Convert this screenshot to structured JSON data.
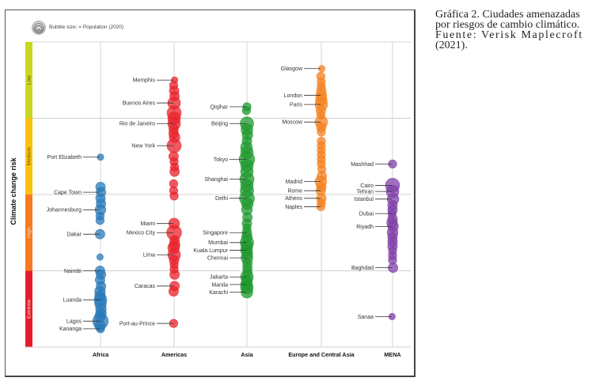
{
  "caption": {
    "line1": "Gráfica 2. Ciudades amenazadas",
    "line2": "por riesgos de cambio climático.",
    "line3": "Fuente: Verisk Maplecroft",
    "line4": "(2021)."
  },
  "chart_data": {
    "type": "scatter",
    "subtype": "beeswarm-bubble",
    "title": "",
    "legend": {
      "text": "Bubble size: = Population (2020)",
      "placement": "top-left",
      "icon": "bubble-size-icon"
    },
    "ylabel": "Climate change risk",
    "xlabel": "",
    "categories": [
      "Africa",
      "Americas",
      "Asia",
      "Europe and Central Asia",
      "MENA"
    ],
    "risk_bands": [
      {
        "label": "Low",
        "color": "#c9d81f",
        "range": [
          0,
          1
        ]
      },
      {
        "label": "Medium",
        "color": "#fbc20a",
        "range": [
          1,
          2
        ]
      },
      {
        "label": "High",
        "color": "#f57b20",
        "range": [
          2,
          3
        ]
      },
      {
        "label": "Extreme",
        "color": "#e8192c",
        "range": [
          3,
          4
        ]
      }
    ],
    "y_axis_note": "Risk index from 0 (top, lowest risk) to 4 (bottom, extreme risk)",
    "ylim": [
      0,
      4
    ],
    "grid": true,
    "series": [
      {
        "name": "Africa",
        "color": "#2a7ab8",
        "labeled": [
          {
            "city": "Port Elizabeth",
            "y": 1.51,
            "size": 1
          },
          {
            "city": "Cape Town",
            "y": 1.97,
            "size": 3
          },
          {
            "city": "Johannesburg",
            "y": 2.2,
            "size": 4
          },
          {
            "city": "Dakar",
            "y": 2.52,
            "size": 3
          },
          {
            "city": "Nairobi",
            "y": 3.0,
            "size": 3
          },
          {
            "city": "Luanda",
            "y": 3.38,
            "size": 6
          },
          {
            "city": "Lagos",
            "y": 3.66,
            "size": 10
          },
          {
            "city": "Kananga",
            "y": 3.76,
            "size": 2
          }
        ],
        "others": [
          [
            1.9,
            3
          ],
          [
            2.05,
            3
          ],
          [
            2.12,
            3
          ],
          [
            2.28,
            2
          ],
          [
            2.34,
            2
          ],
          [
            2.82,
            1
          ],
          [
            3.05,
            3
          ],
          [
            3.12,
            3
          ],
          [
            3.2,
            3
          ],
          [
            3.27,
            4
          ],
          [
            3.33,
            4
          ],
          [
            3.43,
            5
          ],
          [
            3.5,
            4
          ],
          [
            3.56,
            4
          ],
          [
            3.6,
            4
          ],
          [
            3.72,
            4
          ]
        ]
      },
      {
        "name": "Americas",
        "color": "#e8232c",
        "labeled": [
          {
            "city": "Memphis",
            "y": 0.5,
            "size": 1
          },
          {
            "city": "Buenos Aires",
            "y": 0.8,
            "size": 6
          },
          {
            "city": "Rio de Janeiro",
            "y": 1.07,
            "size": 6
          },
          {
            "city": "New York",
            "y": 1.36,
            "size": 8
          },
          {
            "city": "Miami",
            "y": 2.38,
            "size": 4
          },
          {
            "city": "Mexico City",
            "y": 2.5,
            "size": 9
          },
          {
            "city": "Lima",
            "y": 2.79,
            "size": 6
          },
          {
            "city": "Caracas",
            "y": 3.2,
            "size": 3
          },
          {
            "city": "Port-au-Prince",
            "y": 3.69,
            "size": 2
          }
        ],
        "others": [
          [
            0.57,
            2
          ],
          [
            0.64,
            3
          ],
          [
            0.71,
            3
          ],
          [
            0.93,
            8
          ],
          [
            1.0,
            6
          ],
          [
            1.14,
            3
          ],
          [
            1.2,
            3
          ],
          [
            1.25,
            4
          ],
          [
            1.5,
            3
          ],
          [
            1.57,
            2
          ],
          [
            1.64,
            2
          ],
          [
            1.7,
            3
          ],
          [
            1.86,
            2
          ],
          [
            1.95,
            2
          ],
          [
            2.02,
            2
          ],
          [
            2.6,
            3
          ],
          [
            2.66,
            4
          ],
          [
            2.7,
            5
          ],
          [
            2.86,
            3
          ],
          [
            2.92,
            2
          ],
          [
            2.98,
            2
          ],
          [
            3.05,
            3
          ],
          [
            3.27,
            3
          ]
        ]
      },
      {
        "name": "Asia",
        "color": "#1f9a2f",
        "labeled": [
          {
            "city": "Qiqihar",
            "y": 0.85,
            "size": 2
          },
          {
            "city": "Beijing",
            "y": 1.07,
            "size": 7
          },
          {
            "city": "Tokyo",
            "y": 1.54,
            "size": 10
          },
          {
            "city": "Shanghai",
            "y": 1.8,
            "size": 8
          },
          {
            "city": "Delhi",
            "y": 2.05,
            "size": 9
          },
          {
            "city": "Singapore",
            "y": 2.5,
            "size": 3
          },
          {
            "city": "Mumbai",
            "y": 2.63,
            "size": 7
          },
          {
            "city": "Kuala Lumpur",
            "y": 2.73,
            "size": 5
          },
          {
            "city": "Chennai",
            "y": 2.83,
            "size": 5
          },
          {
            "city": "Jakarta",
            "y": 3.08,
            "size": 6
          },
          {
            "city": "Manila",
            "y": 3.18,
            "size": 5
          },
          {
            "city": "Karachi",
            "y": 3.28,
            "size": 5
          }
        ],
        "others": [
          [
            0.9,
            2
          ],
          [
            1.15,
            5
          ],
          [
            1.22,
            4
          ],
          [
            1.3,
            3
          ],
          [
            1.38,
            5
          ],
          [
            1.45,
            6
          ],
          [
            1.62,
            6
          ],
          [
            1.7,
            6
          ],
          [
            1.88,
            6
          ],
          [
            1.95,
            7
          ],
          [
            2.12,
            5
          ],
          [
            2.2,
            4
          ],
          [
            2.3,
            3
          ],
          [
            2.38,
            3
          ],
          [
            2.44,
            2
          ],
          [
            2.56,
            4
          ],
          [
            2.68,
            5
          ],
          [
            2.78,
            4
          ],
          [
            2.9,
            3
          ],
          [
            2.96,
            3
          ],
          [
            3.02,
            3
          ],
          [
            3.13,
            4
          ],
          [
            3.22,
            6
          ]
        ]
      },
      {
        "name": "Europe and Central Asia",
        "color": "#f58220",
        "labeled": [
          {
            "city": "Glasgow",
            "y": 0.35,
            "size": 1
          },
          {
            "city": "London",
            "y": 0.7,
            "size": 4
          },
          {
            "city": "Paris",
            "y": 0.82,
            "size": 6
          },
          {
            "city": "Moscow",
            "y": 1.05,
            "size": 6
          },
          {
            "city": "Madrid",
            "y": 1.83,
            "size": 5
          },
          {
            "city": "Rome",
            "y": 1.95,
            "size": 3
          },
          {
            "city": "Athens",
            "y": 2.05,
            "size": 3
          },
          {
            "city": "Naples",
            "y": 2.16,
            "size": 2
          }
        ],
        "others": [
          [
            0.45,
            2
          ],
          [
            0.52,
            2
          ],
          [
            0.58,
            2
          ],
          [
            0.64,
            3
          ],
          [
            0.76,
            5
          ],
          [
            0.9,
            3
          ],
          [
            0.96,
            2
          ],
          [
            1.12,
            3
          ],
          [
            1.18,
            2
          ],
          [
            1.3,
            2
          ],
          [
            1.36,
            2
          ],
          [
            1.42,
            2
          ],
          [
            1.48,
            2
          ],
          [
            1.54,
            2
          ],
          [
            1.6,
            2
          ],
          [
            1.67,
            2
          ],
          [
            1.76,
            3
          ],
          [
            1.9,
            3
          ],
          [
            2.11,
            2
          ]
        ]
      },
      {
        "name": "MENA",
        "color": "#8040a8",
        "labeled": [
          {
            "city": "Mashhad",
            "y": 1.6,
            "size": 2
          },
          {
            "city": "Cairo",
            "y": 1.88,
            "size": 8
          },
          {
            "city": "Tehran",
            "y": 1.96,
            "size": 6
          },
          {
            "city": "Istanbul",
            "y": 2.06,
            "size": 5
          },
          {
            "city": "Dubai",
            "y": 2.25,
            "size": 2
          },
          {
            "city": "Riyadh",
            "y": 2.42,
            "size": 4
          },
          {
            "city": "Baghdad",
            "y": 2.96,
            "size": 3
          },
          {
            "city": "Sanaa",
            "y": 3.6,
            "size": 1
          }
        ],
        "others": [
          [
            2.14,
            3
          ],
          [
            2.2,
            3
          ],
          [
            2.32,
            3
          ],
          [
            2.37,
            4
          ],
          [
            2.5,
            4
          ],
          [
            2.56,
            3
          ],
          [
            2.62,
            3
          ],
          [
            2.68,
            3
          ],
          [
            2.74,
            2
          ],
          [
            2.8,
            2
          ],
          [
            2.86,
            2
          ]
        ]
      }
    ]
  }
}
